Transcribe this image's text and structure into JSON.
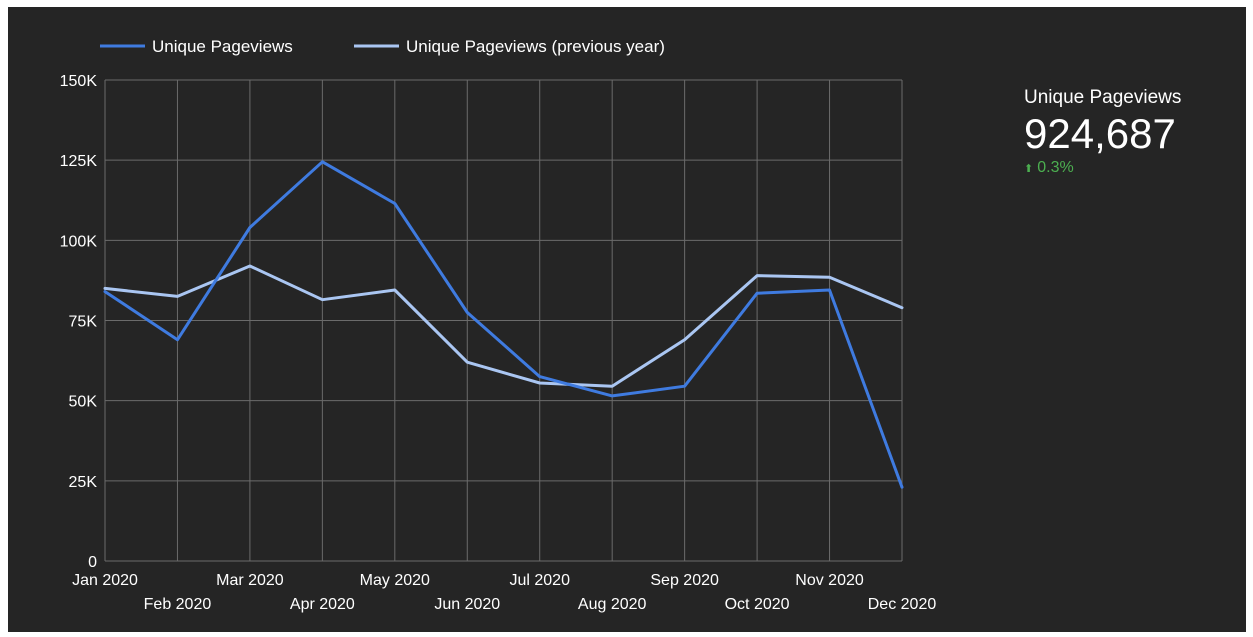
{
  "colors": {
    "background": "#252525",
    "grid": "#6b6b6b",
    "text": "#ffffff",
    "current": "#3f7be0",
    "previous": "#aac6f2",
    "delta_positive": "#4caf50"
  },
  "chart_data": {
    "type": "line",
    "categories": [
      "Jan 2020",
      "Feb 2020",
      "Mar 2020",
      "Apr 2020",
      "May 2020",
      "Jun 2020",
      "Jul 2020",
      "Aug 2020",
      "Sep 2020",
      "Oct 2020",
      "Nov 2020",
      "Dec 2020"
    ],
    "series": [
      {
        "name": "Unique Pageviews",
        "color": "#3f7be0",
        "values": [
          84000,
          69000,
          104000,
          124500,
          111500,
          77500,
          57500,
          51500,
          54500,
          83500,
          84500,
          23000
        ]
      },
      {
        "name": "Unique Pageviews (previous year)",
        "color": "#aac6f2",
        "values": [
          85000,
          82500,
          92000,
          81500,
          84500,
          62000,
          55500,
          54500,
          69000,
          89000,
          88500,
          79000
        ]
      }
    ],
    "ylim": [
      0,
      150000
    ],
    "yticks": [
      0,
      25000,
      50000,
      75000,
      100000,
      125000,
      150000
    ],
    "ytick_labels": [
      "0",
      "25K",
      "50K",
      "75K",
      "100K",
      "125K",
      "150K"
    ],
    "grid": true,
    "legend": "top-left"
  },
  "scorecard": {
    "label": "Unique Pageviews",
    "value": "924,687",
    "delta": "0.3%",
    "delta_icon": "arrow-up-icon"
  }
}
